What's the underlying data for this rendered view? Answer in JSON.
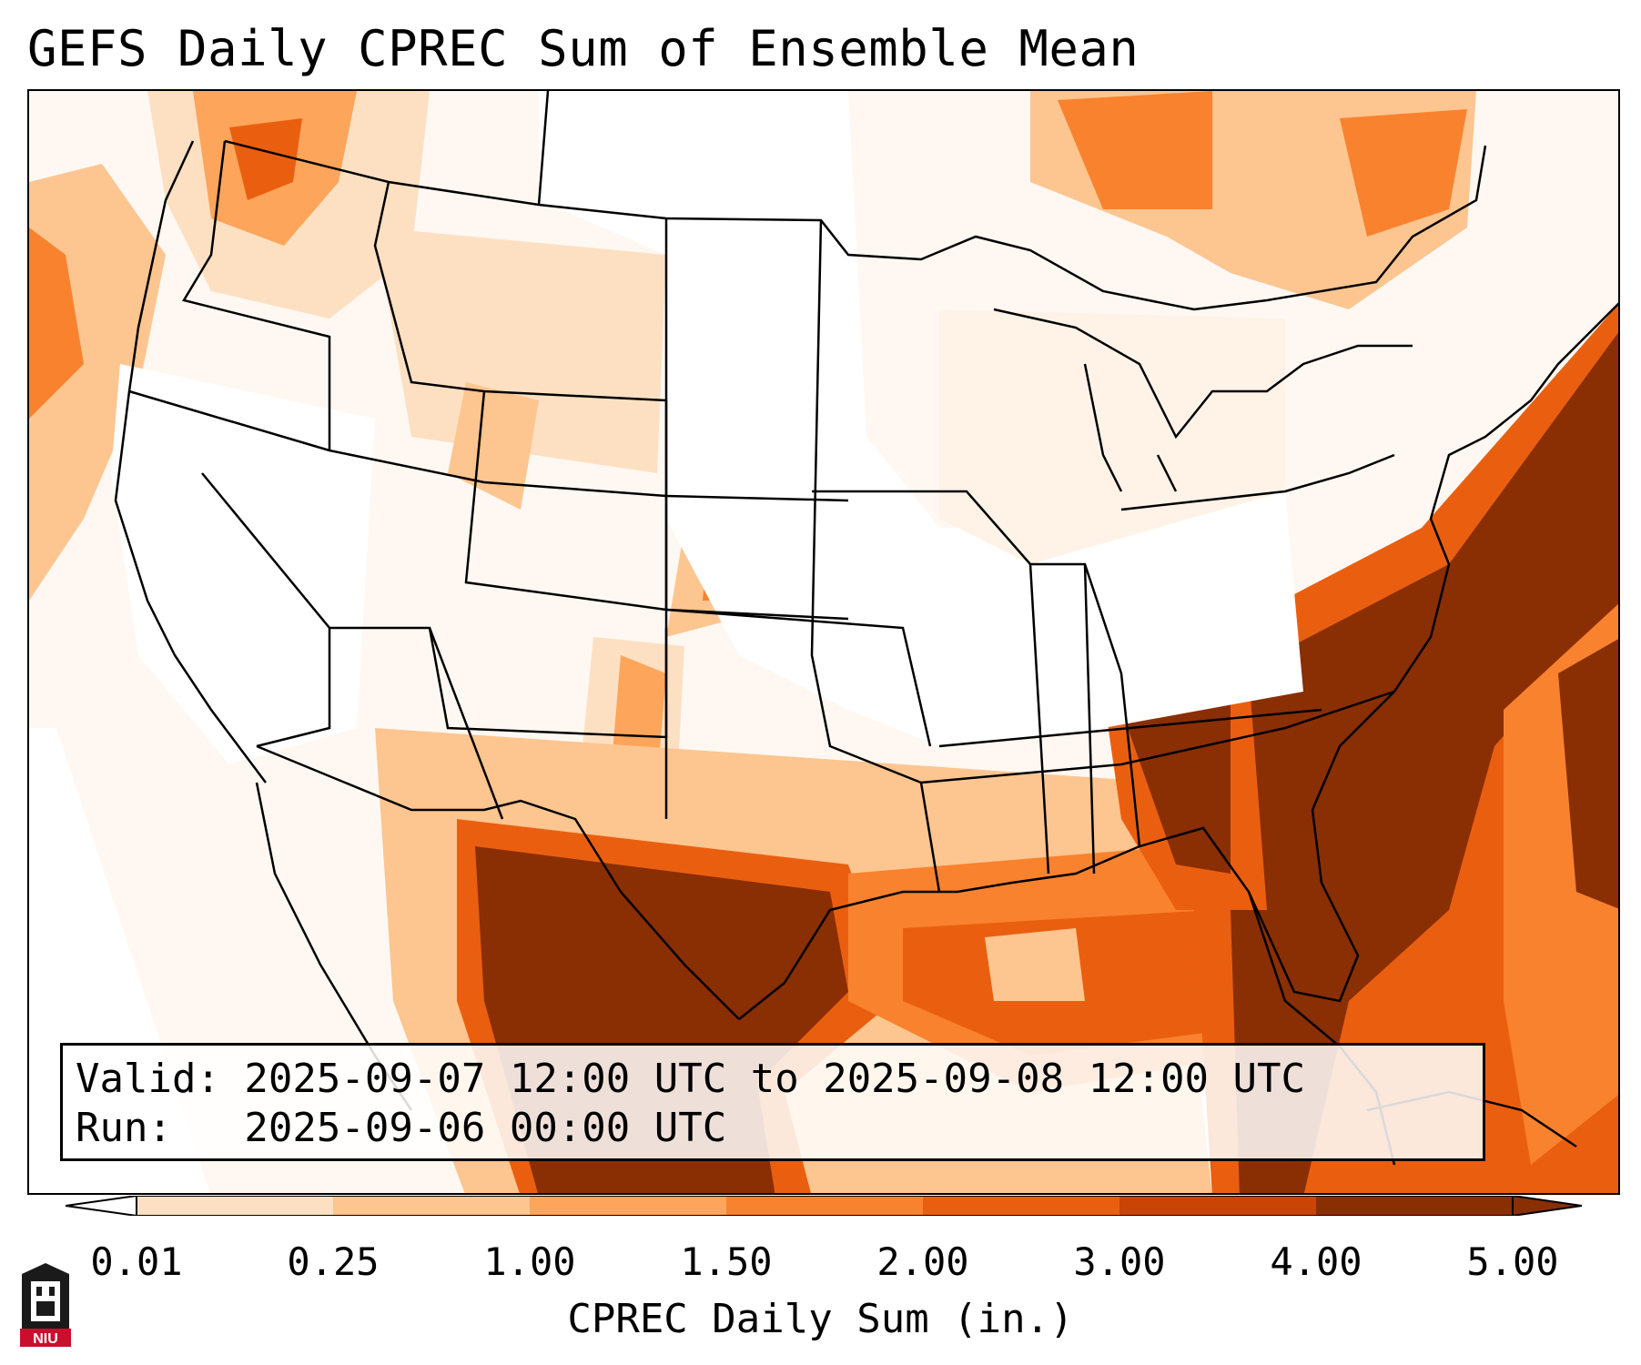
{
  "title": "GEFS Daily CPREC Sum of Ensemble Mean",
  "info": {
    "valid_line": "Valid: 2025-09-07 12:00 UTC to 2025-09-08 12:00 UTC",
    "run_line": "Run:   2025-09-06 00:00 UTC"
  },
  "colorbar": {
    "label": "CPREC Daily Sum (in.)",
    "ticks": [
      "0.01",
      "0.25",
      "1.00",
      "1.50",
      "2.00",
      "3.00",
      "4.00",
      "5.00"
    ],
    "colors": [
      "#fff3e8",
      "#fde0c2",
      "#fdc590",
      "#fca55b",
      "#f9822e",
      "#ea5f0f",
      "#c94405",
      "#8a2e04"
    ]
  },
  "logo": {
    "text": "NIU",
    "color": "#c8102e"
  }
}
